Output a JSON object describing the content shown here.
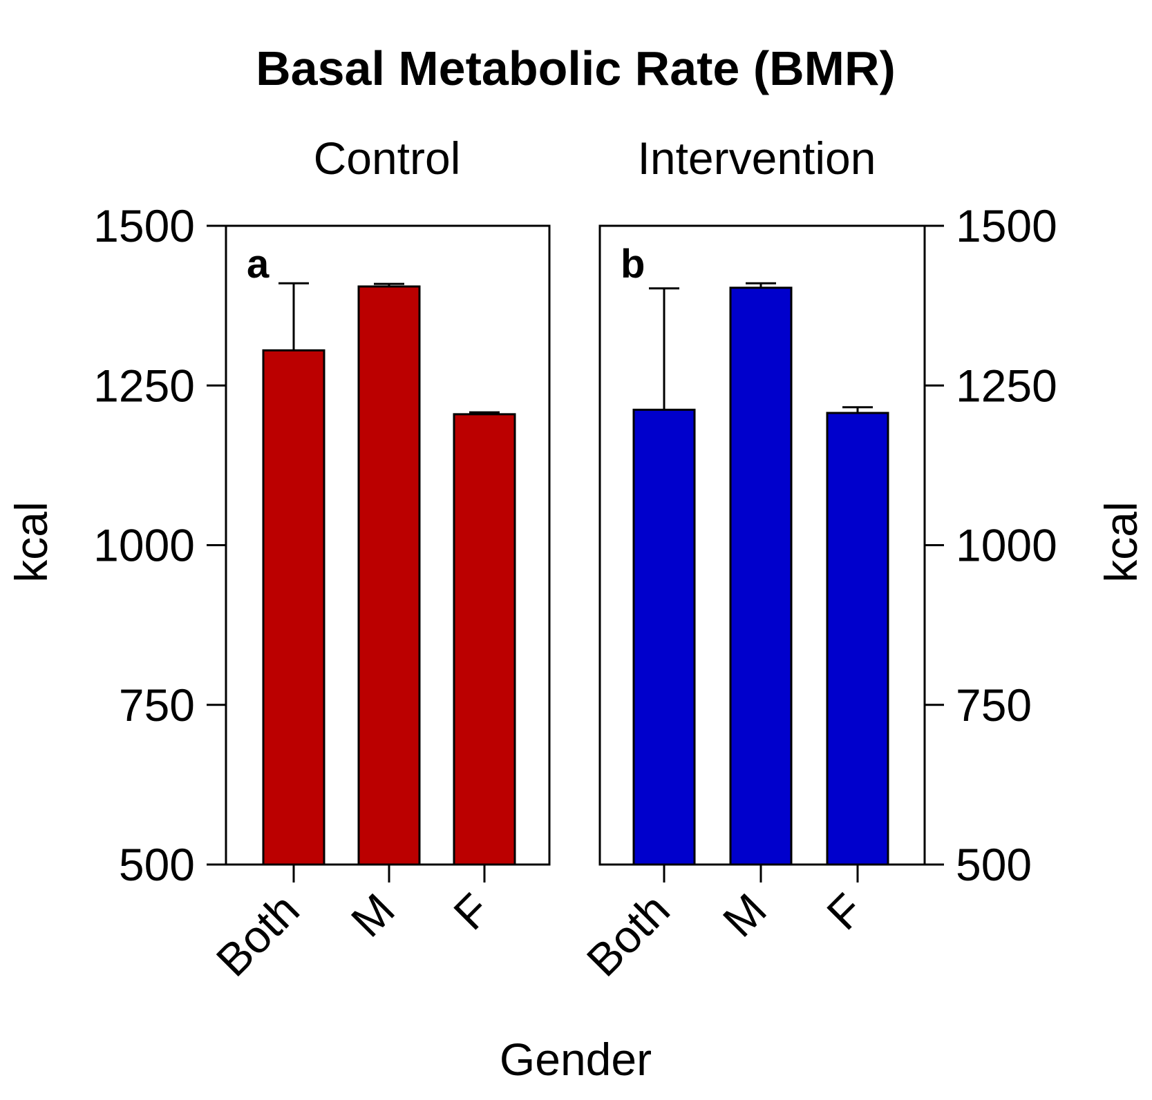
{
  "chart_data": {
    "type": "bar",
    "title": "Basal Metabolic Rate (BMR)",
    "xlabel": "Gender",
    "ylabel": "kcal",
    "ylim": [
      500,
      1500
    ],
    "yticks": [
      "500",
      "750",
      "1000",
      "1250",
      "1500"
    ],
    "categories": [
      "Both",
      "M",
      "F"
    ],
    "panels": [
      {
        "letter": "a",
        "title": "Control",
        "color": "#bb0000",
        "values": [
          1305,
          1405,
          1205
        ],
        "errors": [
          105,
          4,
          3
        ]
      },
      {
        "letter": "b",
        "title": "Intervention",
        "color": "#0000cc",
        "values": [
          1212,
          1403,
          1207
        ],
        "errors": [
          190,
          7,
          9
        ]
      }
    ]
  }
}
